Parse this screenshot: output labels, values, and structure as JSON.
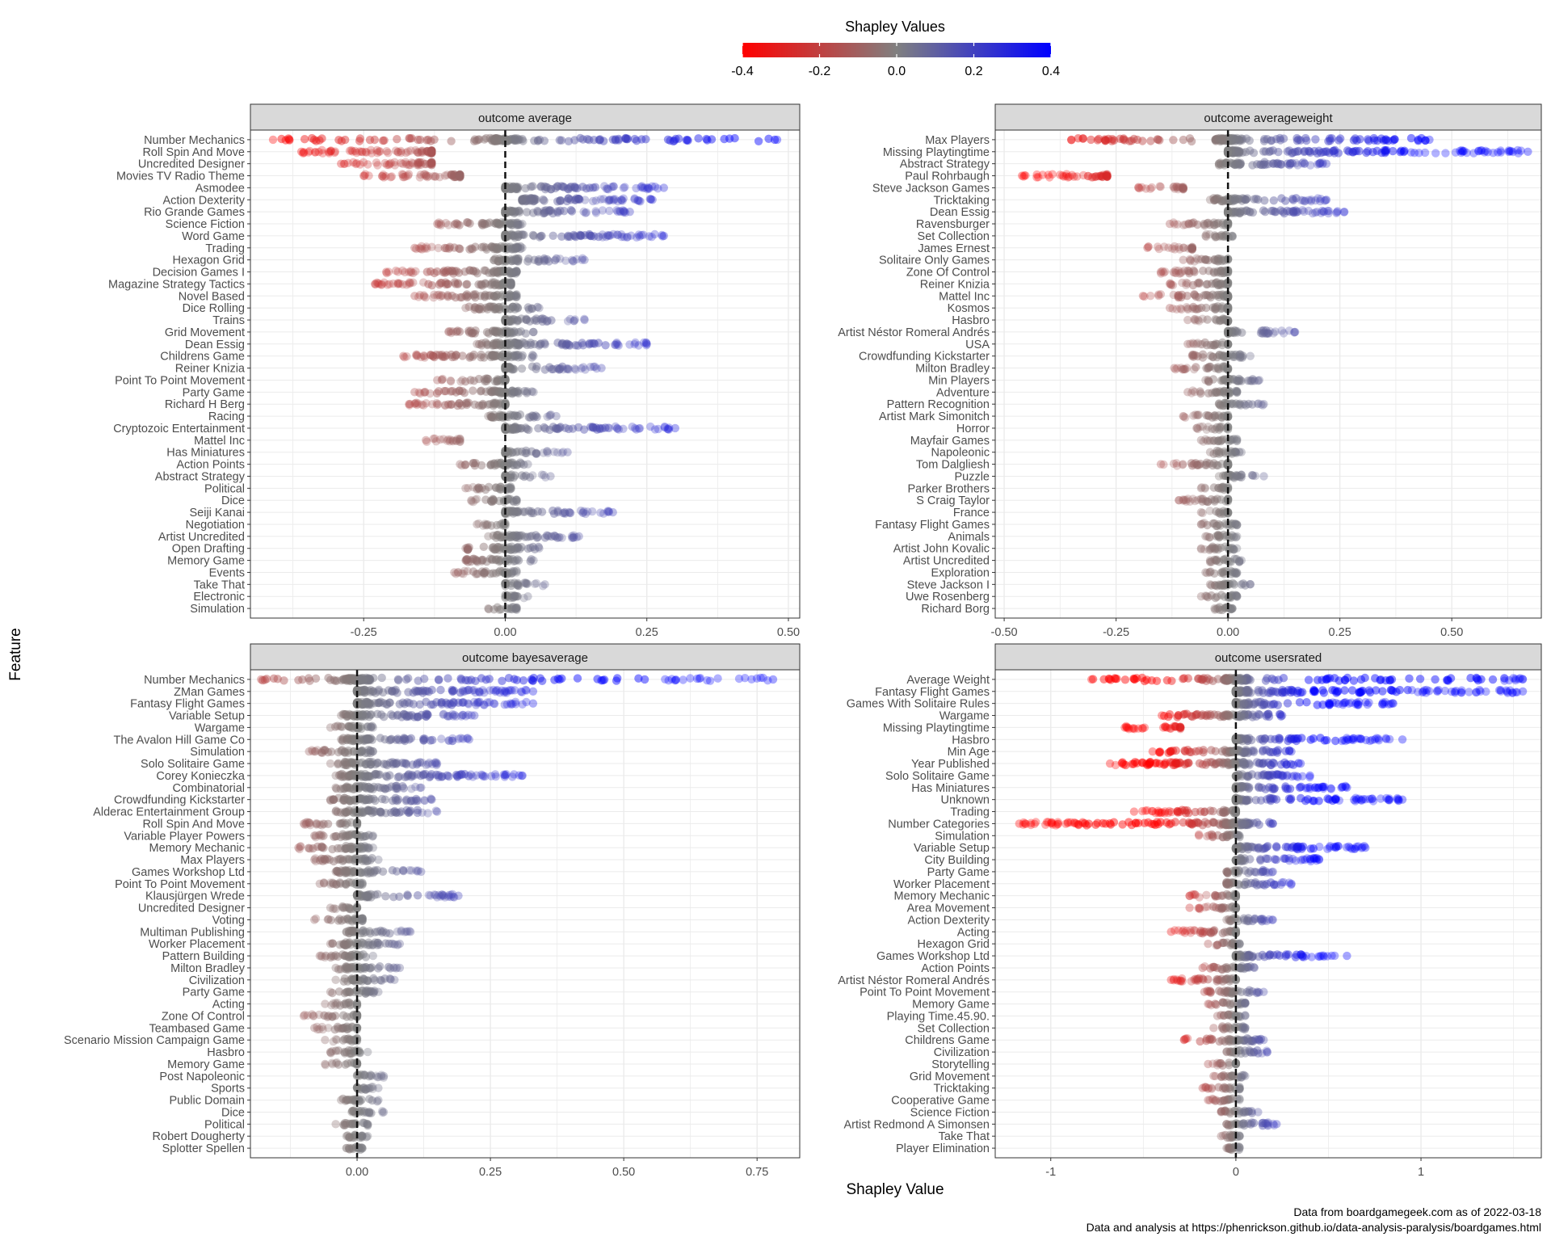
{
  "legend": {
    "title": "Shapley Values",
    "ticks": [
      -0.4,
      -0.2,
      0.0,
      0.2,
      0.4
    ],
    "tick_labels": [
      "-0.4",
      "-0.2",
      "0.0",
      "0.2",
      "0.4"
    ],
    "colors": {
      "low": "#ff0000",
      "mid": "#808080",
      "high": "#0000ff"
    }
  },
  "axis": {
    "xlabel": "Shapley Value",
    "ylabel": "Feature"
  },
  "caption": [
    "Data from boardgamegeek.com as of 2022-03-18",
    "Data and analysis at https://phenrickson.github.io/data-analysis-paralysis/boardgames.html"
  ],
  "chart_data": [
    {
      "type": "scatter",
      "title": "outcome average",
      "xlim": [
        -0.45,
        0.52
      ],
      "xticks": [
        -0.25,
        0.0,
        0.25,
        0.5
      ],
      "xtick_labels": [
        "-0.25",
        "0.00",
        "0.25",
        "0.50"
      ],
      "points": [
        [
          "Number Mechanics",
          -0.41,
          0.48,
          1
        ],
        [
          "Roll Spin And Move",
          -0.36,
          -0.13,
          0
        ],
        [
          "Uncredited Designer",
          -0.29,
          -0.13,
          0
        ],
        [
          "Movies TV Radio Theme",
          -0.25,
          -0.08,
          0
        ],
        [
          "Asmodee",
          0.0,
          0.28,
          2
        ],
        [
          "Action Dexterity",
          0.03,
          0.26,
          2
        ],
        [
          "Rio Grande Games",
          0.0,
          0.22,
          2
        ],
        [
          "Science Fiction",
          -0.12,
          0.03,
          0
        ],
        [
          "Word Game",
          0.0,
          0.28,
          2
        ],
        [
          "Trading",
          -0.16,
          0.03,
          0
        ],
        [
          "Hexagon Grid",
          -0.02,
          0.14,
          2
        ],
        [
          "Decision Games I",
          -0.21,
          0.02,
          0
        ],
        [
          "Magazine Strategy Tactics",
          -0.23,
          0.01,
          0
        ],
        [
          "Novel Based",
          -0.16,
          0.02,
          0
        ],
        [
          "Dice Rolling",
          -0.07,
          0.06,
          1
        ],
        [
          "Trains",
          0.0,
          0.14,
          2
        ],
        [
          "Grid Movement",
          -0.1,
          0.05,
          1
        ],
        [
          "Dean Essig",
          -0.05,
          0.25,
          2
        ],
        [
          "Childrens Game",
          -0.18,
          0.05,
          0
        ],
        [
          "Reiner Knizia",
          0.0,
          0.17,
          2
        ],
        [
          "Point To Point Movement",
          -0.12,
          0.0,
          0
        ],
        [
          "Party Game",
          -0.16,
          0.05,
          0
        ],
        [
          "Richard H Berg",
          -0.17,
          0.0,
          0
        ],
        [
          "Racing",
          -0.03,
          0.09,
          2
        ],
        [
          "Cryptozoic Entertainment",
          0.0,
          0.3,
          2
        ],
        [
          "Mattel Inc",
          -0.14,
          -0.08,
          0
        ],
        [
          "Has Miniatures",
          0.0,
          0.11,
          2
        ],
        [
          "Action Points",
          -0.08,
          0.04,
          1
        ],
        [
          "Abstract Strategy",
          0.0,
          0.08,
          2
        ],
        [
          "Political",
          -0.07,
          0.01,
          0
        ],
        [
          "Dice",
          -0.06,
          0.02,
          1
        ],
        [
          "Seiji Kanai",
          0.0,
          0.19,
          2
        ],
        [
          "Negotiation",
          -0.05,
          0.0,
          0
        ],
        [
          "Artist Uncredited",
          -0.03,
          0.13,
          2
        ],
        [
          "Open Drafting",
          -0.07,
          0.06,
          1
        ],
        [
          "Memory Game",
          -0.07,
          0.05,
          1
        ],
        [
          "Events",
          -0.09,
          0.02,
          0
        ],
        [
          "Take That",
          0.0,
          0.07,
          2
        ],
        [
          "Electronic",
          0.0,
          0.04,
          2
        ],
        [
          "Simulation",
          -0.03,
          0.02,
          1
        ]
      ]
    },
    {
      "type": "scatter",
      "title": "outcome averageweight",
      "xlim": [
        -0.52,
        0.7
      ],
      "xticks": [
        -0.5,
        -0.25,
        0.0,
        0.25,
        0.5
      ],
      "xtick_labels": [
        "-0.50",
        "-0.25",
        "0.00",
        "0.25",
        "0.50"
      ],
      "points": [
        [
          "Max Players",
          -0.35,
          0.45,
          1
        ],
        [
          "Missing Playtingtime",
          0.0,
          0.67,
          2
        ],
        [
          "Abstract Strategy",
          -0.02,
          0.22,
          2
        ],
        [
          "Paul Rohrbaugh",
          -0.46,
          -0.27,
          0
        ],
        [
          "Steve Jackson Games",
          -0.2,
          -0.1,
          0
        ],
        [
          "Tricktaking",
          -0.04,
          0.22,
          2
        ],
        [
          "Dean Essig",
          0.0,
          0.26,
          2
        ],
        [
          "Ravensburger",
          -0.13,
          0.0,
          0
        ],
        [
          "Set Collection",
          -0.05,
          0.01,
          1
        ],
        [
          "James Ernest",
          -0.18,
          -0.08,
          0
        ],
        [
          "Solitaire Only Games",
          -0.1,
          0.0,
          0
        ],
        [
          "Zone Of Control",
          -0.15,
          0.0,
          0
        ],
        [
          "Reiner Knizia",
          -0.13,
          0.0,
          0
        ],
        [
          "Mattel Inc",
          -0.19,
          0.0,
          0
        ],
        [
          "Kosmos",
          -0.13,
          0.0,
          0
        ],
        [
          "Hasbro",
          -0.09,
          0.0,
          0
        ],
        [
          "Artist Néstor Romeral Andrés",
          0.0,
          0.15,
          2
        ],
        [
          "USA",
          -0.09,
          0.0,
          0
        ],
        [
          "Crowdfunding Kickstarter",
          -0.08,
          0.05,
          1
        ],
        [
          "Milton Bradley",
          -0.12,
          0.0,
          0
        ],
        [
          "Min Players",
          -0.05,
          0.07,
          1
        ],
        [
          "Adventure",
          -0.09,
          0.02,
          1
        ],
        [
          "Pattern Recognition",
          -0.02,
          0.08,
          2
        ],
        [
          "Artist Mark Simonitch",
          -0.1,
          0.0,
          0
        ],
        [
          "Horror",
          -0.07,
          0.0,
          0
        ],
        [
          "Mayfair Games",
          -0.06,
          0.02,
          1
        ],
        [
          "Napoleonic",
          -0.04,
          0.03,
          1
        ],
        [
          "Tom Dalgliesh",
          -0.15,
          0.0,
          0
        ],
        [
          "Puzzle",
          -0.02,
          0.08,
          2
        ],
        [
          "Parker Brothers",
          -0.06,
          0.0,
          0
        ],
        [
          "S Craig Taylor",
          -0.11,
          0.0,
          0
        ],
        [
          "France",
          -0.06,
          0.0,
          0
        ],
        [
          "Fantasy Flight Games",
          -0.06,
          0.02,
          1
        ],
        [
          "Animals",
          -0.05,
          0.02,
          1
        ],
        [
          "Artist John Kovalic",
          -0.06,
          0.02,
          1
        ],
        [
          "Artist Uncredited",
          -0.04,
          0.03,
          1
        ],
        [
          "Exploration",
          -0.05,
          0.02,
          1
        ],
        [
          "Steve Jackson I",
          -0.04,
          0.05,
          1
        ],
        [
          "Uwe Rosenberg",
          -0.06,
          0.02,
          1
        ],
        [
          "Richard Borg",
          -0.03,
          0.01,
          1
        ]
      ]
    },
    {
      "type": "scatter",
      "title": "outcome bayesaverage",
      "xlim": [
        -0.2,
        0.83
      ],
      "xticks": [
        0.0,
        0.25,
        0.5,
        0.75
      ],
      "xtick_labels": [
        "0.00",
        "0.25",
        "0.50",
        "0.75"
      ],
      "points": [
        [
          "Number Mechanics",
          -0.18,
          0.78,
          1
        ],
        [
          "ZMan Games",
          0.0,
          0.33,
          2
        ],
        [
          "Fantasy Flight Games",
          0.0,
          0.33,
          2
        ],
        [
          "Variable Setup",
          -0.03,
          0.22,
          2
        ],
        [
          "Wargame",
          -0.05,
          0.03,
          1
        ],
        [
          "The Avalon Hill Game Co",
          -0.03,
          0.21,
          2
        ],
        [
          "Simulation",
          -0.09,
          0.03,
          1
        ],
        [
          "Solo Solitaire Game",
          -0.05,
          0.15,
          2
        ],
        [
          "Corey Konieczka",
          -0.04,
          0.31,
          2
        ],
        [
          "Combinatorial",
          -0.04,
          0.12,
          1
        ],
        [
          "Crowdfunding Kickstarter",
          -0.05,
          0.14,
          1
        ],
        [
          "Alderac Entertainment Group",
          -0.04,
          0.15,
          2
        ],
        [
          "Roll Spin And Move",
          -0.1,
          0.0,
          0
        ],
        [
          "Variable Player Powers",
          -0.08,
          0.03,
          1
        ],
        [
          "Memory Mechanic",
          -0.11,
          0.03,
          1
        ],
        [
          "Max Players",
          -0.08,
          0.04,
          1
        ],
        [
          "Games Workshop Ltd",
          -0.04,
          0.12,
          2
        ],
        [
          "Point To Point Movement",
          -0.07,
          0.01,
          1
        ],
        [
          "Klausjürgen Wrede",
          0.0,
          0.19,
          2
        ],
        [
          "Uncredited Designer",
          -0.05,
          0.0,
          0
        ],
        [
          "Voting",
          -0.08,
          0.01,
          1
        ],
        [
          "Multiman Publishing",
          -0.02,
          0.1,
          2
        ],
        [
          "Worker Placement",
          -0.05,
          0.08,
          1
        ],
        [
          "Pattern Building",
          -0.07,
          0.03,
          1
        ],
        [
          "Milton Bradley",
          -0.04,
          0.08,
          1
        ],
        [
          "Civilization",
          -0.04,
          0.07,
          1
        ],
        [
          "Party Game",
          -0.05,
          0.04,
          1
        ],
        [
          "Acting",
          -0.06,
          0.0,
          0
        ],
        [
          "Zone Of Control",
          -0.1,
          0.0,
          0
        ],
        [
          "Teambased Game",
          -0.08,
          0.0,
          0
        ],
        [
          "Scenario Mission Campaign Game",
          -0.06,
          0.0,
          0
        ],
        [
          "Hasbro",
          -0.05,
          0.02,
          1
        ],
        [
          "Memory Game",
          -0.06,
          0.0,
          0
        ],
        [
          "Post Napoleonic",
          0.0,
          0.05,
          2
        ],
        [
          "Sports",
          0.0,
          0.04,
          2
        ],
        [
          "Public Domain",
          -0.03,
          0.04,
          1
        ],
        [
          "Dice",
          -0.01,
          0.05,
          2
        ],
        [
          "Political",
          -0.04,
          0.02,
          1
        ],
        [
          "Robert Dougherty",
          -0.02,
          0.02,
          1
        ],
        [
          "Splotter Spellen",
          -0.02,
          0.01,
          1
        ]
      ]
    },
    {
      "type": "scatter",
      "title": "outcome usersrated",
      "xlim": [
        -1.3,
        1.65
      ],
      "xticks": [
        -1,
        0,
        1
      ],
      "xtick_labels": [
        "-1",
        "0",
        "1"
      ],
      "points": [
        [
          "Average Weight",
          -0.78,
          1.55,
          1
        ],
        [
          "Fantasy Flight Games",
          0.0,
          1.55,
          2
        ],
        [
          "Games With Solitaire Rules",
          0.0,
          0.85,
          2
        ],
        [
          "Wargame",
          -0.4,
          0.25,
          1
        ],
        [
          "Missing Playtingtime",
          -0.6,
          -0.3,
          0
        ],
        [
          "Hasbro",
          0.0,
          0.9,
          2
        ],
        [
          "Min Age",
          -0.45,
          0.3,
          1
        ],
        [
          "Year Published",
          -0.68,
          0.35,
          1
        ],
        [
          "Solo Solitaire Game",
          0.0,
          0.4,
          2
        ],
        [
          "Has Miniatures",
          0.0,
          0.6,
          2
        ],
        [
          "Unknown",
          0.0,
          0.9,
          2
        ],
        [
          "Trading",
          -0.55,
          0.0,
          0
        ],
        [
          "Number Categories",
          -1.17,
          0.2,
          1
        ],
        [
          "Simulation",
          -0.2,
          0.02,
          1
        ],
        [
          "Variable Setup",
          0.0,
          0.7,
          2
        ],
        [
          "City Building",
          0.0,
          0.45,
          2
        ],
        [
          "Party Game",
          -0.05,
          0.2,
          2
        ],
        [
          "Worker Placement",
          -0.05,
          0.3,
          2
        ],
        [
          "Memory Mechanic",
          -0.25,
          0.0,
          0
        ],
        [
          "Area Movement",
          -0.25,
          0.0,
          0
        ],
        [
          "Action Dexterity",
          -0.05,
          0.2,
          2
        ],
        [
          "Acting",
          -0.35,
          0.0,
          0
        ],
        [
          "Hexagon Grid",
          -0.15,
          0.02,
          1
        ],
        [
          "Games Workshop Ltd",
          0.0,
          0.6,
          2
        ],
        [
          "Action Points",
          -0.18,
          0.1,
          1
        ],
        [
          "Artist Néstor Romeral Andrés",
          -0.35,
          0.0,
          0
        ],
        [
          "Point To Point Movement",
          -0.17,
          0.15,
          1
        ],
        [
          "Memory Game",
          -0.15,
          0.05,
          1
        ],
        [
          "Playing Time.45.90.",
          -0.1,
          0.05,
          1
        ],
        [
          "Set Collection",
          -0.12,
          0.05,
          1
        ],
        [
          "Childrens Game",
          -0.28,
          0.15,
          1
        ],
        [
          "Civilization",
          -0.05,
          0.17,
          2
        ],
        [
          "Storytelling",
          -0.15,
          0.0,
          0
        ],
        [
          "Grid Movement",
          -0.12,
          0.05,
          1
        ],
        [
          "Tricktaking",
          -0.18,
          0.02,
          1
        ],
        [
          "Cooperative Game",
          -0.15,
          0.02,
          1
        ],
        [
          "Science Fiction",
          -0.08,
          0.12,
          1
        ],
        [
          "Artist Redmond A Simonsen",
          -0.05,
          0.22,
          2
        ],
        [
          "Take That",
          -0.08,
          0.02,
          1
        ],
        [
          "Player Elimination",
          -0.05,
          0.02,
          1
        ]
      ]
    }
  ]
}
